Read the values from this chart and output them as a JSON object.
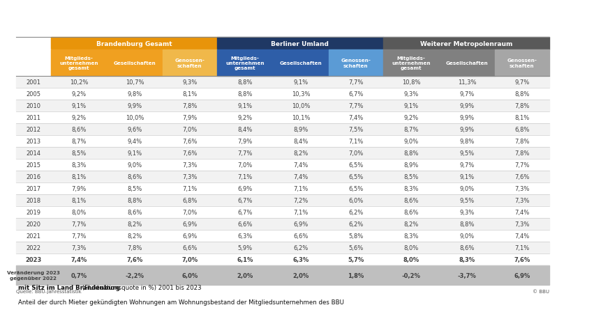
{
  "title_line1": "Anteil der durch Mieter gekündigten Wohnungen am Wohnungsbestand der Mitgliedsunternehmen des BBU",
  "title_line2_bold": "mit Sitz im Land Brandenburg",
  "title_line2_normal": " (Fluktuationsquote in %) 2001 bis 2023",
  "group_headers": [
    "Brandenburg Gesamt",
    "Berliner Umland",
    "Weiterer Metropolenraum"
  ],
  "col_headers": [
    "Mitglieds-\nunternehmen\ngesamt",
    "Gesellschaften",
    "Genossen-\nschaften"
  ],
  "row_labels": [
    "2001",
    "2005",
    "2010",
    "2011",
    "2012",
    "2013",
    "2014",
    "2015",
    "2016",
    "2017",
    "2018",
    "2019",
    "2020",
    "2021",
    "2022",
    "2023"
  ],
  "footer_label": "Veränderung 2023\ngegenüber 2022",
  "source": "Quelle: BBU-Jahresstatistik",
  "copyright": "© BBU",
  "data": [
    [
      "10,2%",
      "10,7%",
      "9,3%",
      "8,8%",
      "9,1%",
      "7,7%",
      "10,8%",
      "11,3%",
      "9,7%"
    ],
    [
      "9,2%",
      "9,8%",
      "8,1%",
      "8,8%",
      "10,3%",
      "6,7%",
      "9,3%",
      "9,7%",
      "8,8%"
    ],
    [
      "9,1%",
      "9,9%",
      "7,8%",
      "9,1%",
      "10,0%",
      "7,7%",
      "9,1%",
      "9,9%",
      "7,8%"
    ],
    [
      "9,2%",
      "10,0%",
      "7,9%",
      "9,2%",
      "10,1%",
      "7,4%",
      "9,2%",
      "9,9%",
      "8,1%"
    ],
    [
      "8,6%",
      "9,6%",
      "7,0%",
      "8,4%",
      "8,9%",
      "7,5%",
      "8,7%",
      "9,9%",
      "6,8%"
    ],
    [
      "8,7%",
      "9,4%",
      "7,6%",
      "7,9%",
      "8,4%",
      "7,1%",
      "9,0%",
      "9,8%",
      "7,8%"
    ],
    [
      "8,5%",
      "9,1%",
      "7,6%",
      "7,7%",
      "8,2%",
      "7,0%",
      "8,8%",
      "9,5%",
      "7,8%"
    ],
    [
      "8,3%",
      "9,0%",
      "7,3%",
      "7,0%",
      "7,4%",
      "6,5%",
      "8,9%",
      "9,7%",
      "7,7%"
    ],
    [
      "8,1%",
      "8,6%",
      "7,3%",
      "7,1%",
      "7,4%",
      "6,5%",
      "8,5%",
      "9,1%",
      "7,6%"
    ],
    [
      "7,9%",
      "8,5%",
      "7,1%",
      "6,9%",
      "7,1%",
      "6,5%",
      "8,3%",
      "9,0%",
      "7,3%"
    ],
    [
      "8,1%",
      "8,8%",
      "6,8%",
      "6,7%",
      "7,2%",
      "6,0%",
      "8,6%",
      "9,5%",
      "7,3%"
    ],
    [
      "8,0%",
      "8,6%",
      "7,0%",
      "6,7%",
      "7,1%",
      "6,2%",
      "8,6%",
      "9,3%",
      "7,4%"
    ],
    [
      "7,7%",
      "8,2%",
      "6,9%",
      "6,6%",
      "6,9%",
      "6,2%",
      "8,2%",
      "8,8%",
      "7,3%"
    ],
    [
      "7,7%",
      "8,2%",
      "6,9%",
      "6,3%",
      "6,6%",
      "5,8%",
      "8,3%",
      "9,0%",
      "7,4%"
    ],
    [
      "7,3%",
      "7,8%",
      "6,6%",
      "5,9%",
      "6,2%",
      "5,6%",
      "8,0%",
      "8,6%",
      "7,1%"
    ],
    [
      "7,4%",
      "7,6%",
      "7,0%",
      "6,1%",
      "6,3%",
      "5,7%",
      "8,0%",
      "8,3%",
      "7,6%"
    ]
  ],
  "footer_data": [
    "0,7%",
    "-2,2%",
    "6,0%",
    "2,0%",
    "2,0%",
    "1,8%",
    "-0,2%",
    "-3,7%",
    "6,9%"
  ],
  "color_bg_header1": "#E8940A",
  "color_bg_header2": "#1F3864",
  "color_bg_header3": "#595959",
  "color_sub_header1a": "#F0A020",
  "color_sub_header1b": "#F0A020",
  "color_sub_header1c": "#F0B84A",
  "color_sub_header2a": "#2E5EA8",
  "color_sub_header2b": "#2E5EA8",
  "color_sub_header2c": "#5B9BD5",
  "color_sub_header3a": "#808080",
  "color_sub_header3b": "#808080",
  "color_sub_header3c": "#A6A6A6",
  "color_row_alt": "#F2F2F2",
  "color_row_norm": "#FFFFFF",
  "color_footer_bg": "#BFBFBF",
  "color_text_data": "#404040",
  "color_line": "#CCCCCC"
}
